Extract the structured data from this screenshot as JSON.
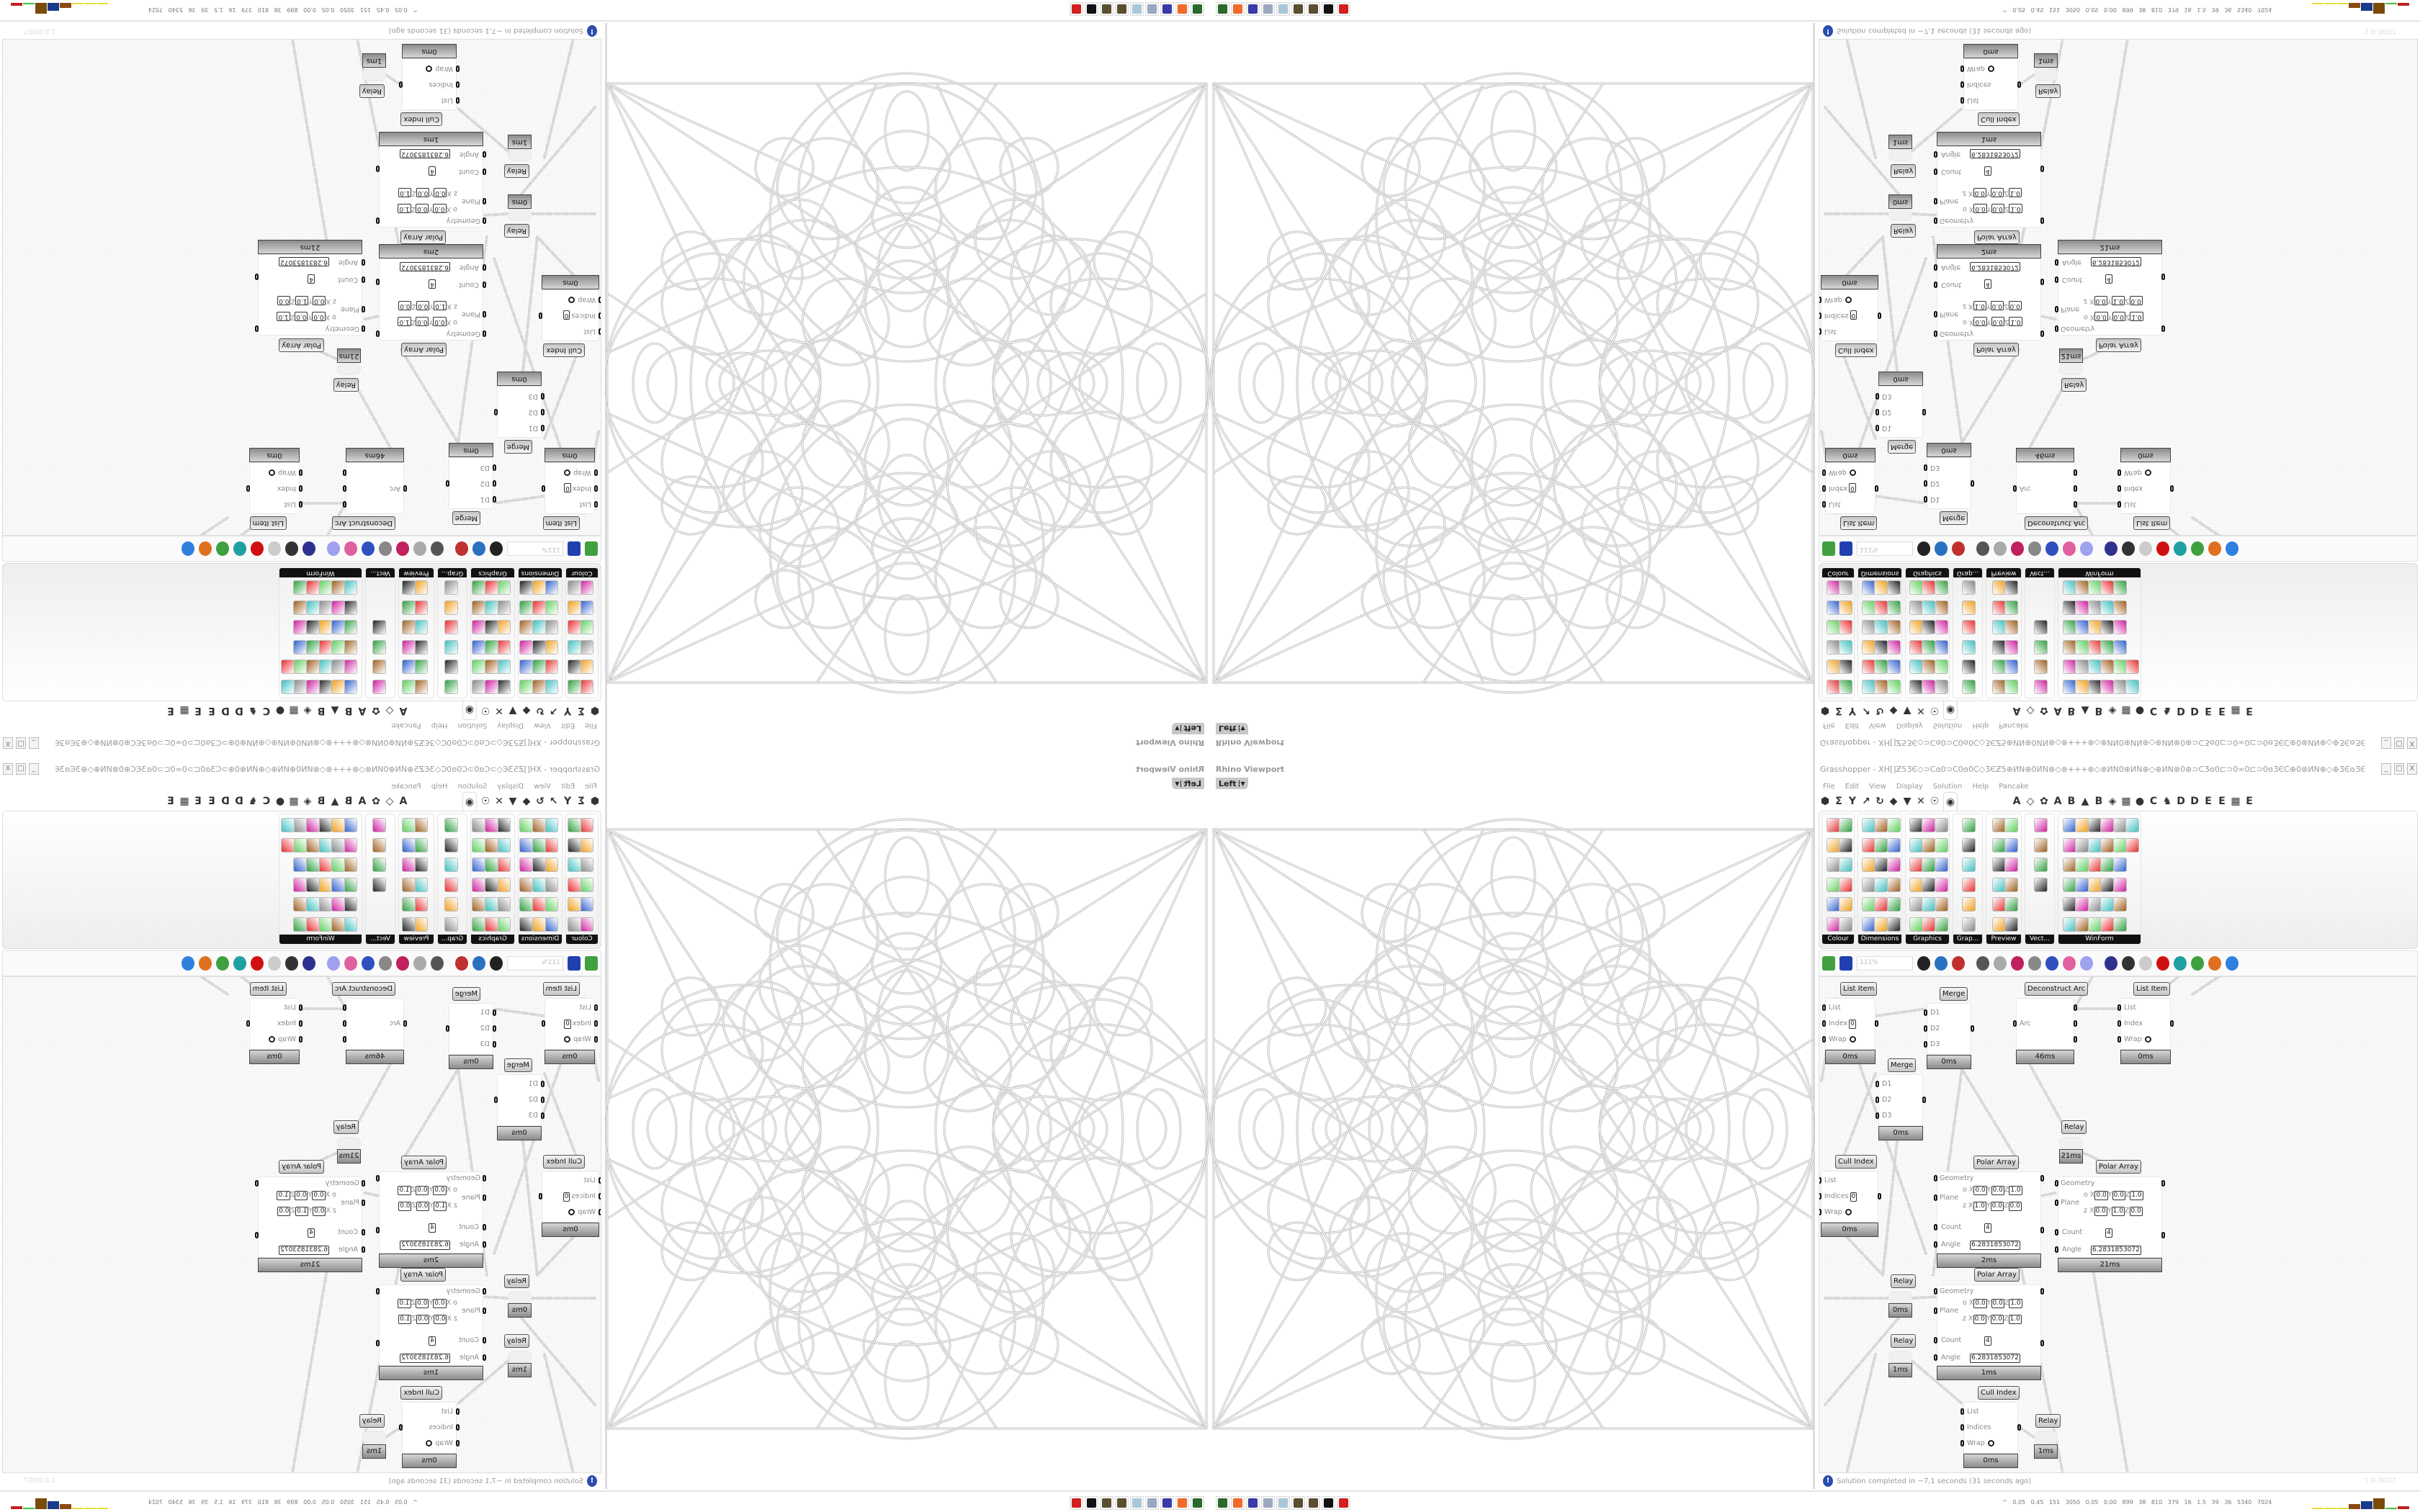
{
  "viewport": {
    "label": "Rhino Viewport",
    "view": "Left"
  },
  "grasshopper": {
    "title": "Grasshopper - XH[]Ƶ5ƷЄ◇⊃Cɞ0⊃C0ɞ0C◇ƷЄƵ5⊕ИN⊕0ИN⊗◇⊗+++⊗◇⊗ИN0⊕ИN⊕◇⊕ИN⊗0⊕⊃CƷɞ0⊏⊃0∞0⊏⊃0ɞƷЄC⊕0⊗ИN⊕◇⊕ƷЄɞƷЄ⊞⊕Ƶ5⊕⊞ƷЄɞƷЄ⊕◇⊕ɞ⊏⊃ƷЄ⊞⊕⊃C...",
    "window_buttons": [
      "_",
      "□",
      "X"
    ],
    "menu": [
      "File",
      "Edit",
      "View",
      "Display",
      "Solution",
      "Help",
      "Pancake"
    ],
    "tabs": [
      "⬢",
      "Σ",
      "Y",
      "↗",
      "↻",
      "◆",
      "▼",
      "✕",
      "☉",
      "◉",
      "A",
      "◇",
      "✿",
      "A",
      "B",
      "▲",
      "B",
      "◈",
      "▦",
      "●",
      "C",
      "♞",
      "D",
      "D",
      "E",
      "E",
      "▦",
      "E"
    ],
    "selected_tab": 9,
    "ribbon_groups": [
      "Colour",
      "Dimensions",
      "Graphics",
      "Grap...",
      "Preview",
      "Vect...",
      "WinForm"
    ],
    "zoom": "111%",
    "status": "Solution completed in ~7,1 seconds (31 seconds ago)",
    "version": "1.0.0007",
    "nodes": [
      {
        "title": "List Item",
        "time": "0ms",
        "inputs": [
          "List",
          "Index",
          "Wrap"
        ],
        "outputs": [
          "i"
        ],
        "index_value": "0"
      },
      {
        "title": "Merge",
        "time": "0ms",
        "inputs": [
          "D1",
          "D2",
          "D3"
        ],
        "outputs": [
          "Result"
        ]
      },
      {
        "title": "Merge",
        "time": "0ms",
        "inputs": [
          "D1",
          "D2",
          "D3"
        ],
        "outputs": [
          "Result"
        ]
      },
      {
        "title": "Deconstruct Arc",
        "time": "46ms",
        "inputs": [
          "Arc"
        ],
        "outputs": [
          "Base Plane",
          "Radius",
          "Angle"
        ]
      },
      {
        "title": "List Item",
        "time": "0ms",
        "inputs": [
          "List",
          "Index",
          "Wrap"
        ],
        "outputs": [
          "i"
        ]
      },
      {
        "title": "Relay",
        "time": "21ms"
      },
      {
        "title": "Cull Index",
        "time": "0ms",
        "inputs": [
          "List",
          "Indices",
          "Wrap"
        ],
        "outputs": [
          "List"
        ],
        "index_value": "0"
      },
      {
        "title": "Polar Array",
        "time": "2ms",
        "inputs": [
          "Geometry",
          "Plane",
          "Count",
          "Angle"
        ],
        "outputs": [
          "Geometry",
          "Transform"
        ],
        "plane_o": [
          "0.0",
          "0.0",
          "1.0"
        ],
        "plane_z": [
          "1.0",
          "0.0",
          "0.0"
        ],
        "count": "4",
        "angle": "6.2831853072"
      },
      {
        "title": "Polar Array",
        "time": "21ms",
        "inputs": [
          "Geometry",
          "Plane",
          "Count",
          "Angle"
        ],
        "outputs": [
          "Geometry",
          "Transform"
        ],
        "plane_o": [
          "0.0",
          "0.0",
          "1.0"
        ],
        "plane_z": [
          "0.0",
          "1.0",
          "0.0"
        ],
        "count": "4",
        "angle": "6.2831853072"
      },
      {
        "title": "Relay",
        "time": "0ms"
      },
      {
        "title": "Relay",
        "time": "1ms"
      },
      {
        "title": "Polar Array",
        "time": "1ms",
        "inputs": [
          "Geometry",
          "Plane",
          "Count",
          "Angle"
        ],
        "outputs": [
          "Geometry",
          "Transform"
        ],
        "plane_o": [
          "0.0",
          "0.0",
          "1.0"
        ],
        "plane_z": [
          "0.0",
          "0.0",
          "1.0"
        ],
        "count": "4",
        "angle": "6.2831853072"
      },
      {
        "title": "Cull Index",
        "time": "0ms",
        "inputs": [
          "List",
          "Indices",
          "Wrap"
        ],
        "outputs": [
          "List"
        ]
      },
      {
        "title": "Relay",
        "time": "1ms"
      }
    ]
  },
  "taskbar": {
    "apps": [
      "terminal",
      "firefox",
      "floppy-64",
      "scroll",
      "notepad",
      "pinecone",
      "pinecone",
      "rhino",
      "red-app"
    ],
    "app_colors": [
      "#2a6a2a",
      "#f06a2a",
      "#3a3aa8",
      "#9aa8c0",
      "#a8c8d8",
      "#5a5030",
      "#5a5030",
      "#111111",
      "#d02020"
    ],
    "stats": "^ 0.05 0.45 151 3050 0.05 0.00 899 38 810 379 16 1.5 39 36 5340 7024",
    "meter_colors": [
      "#e8e040",
      "#e8e040",
      "#e8e040",
      "#8a4a10",
      "#1a3a8a",
      "#7a4a08",
      "#40c040",
      "#c02020"
    ],
    "meter_levels": [
      0.05,
      0.08,
      0.1,
      0.45,
      0.7,
      0.95,
      0.05,
      0.25
    ]
  }
}
